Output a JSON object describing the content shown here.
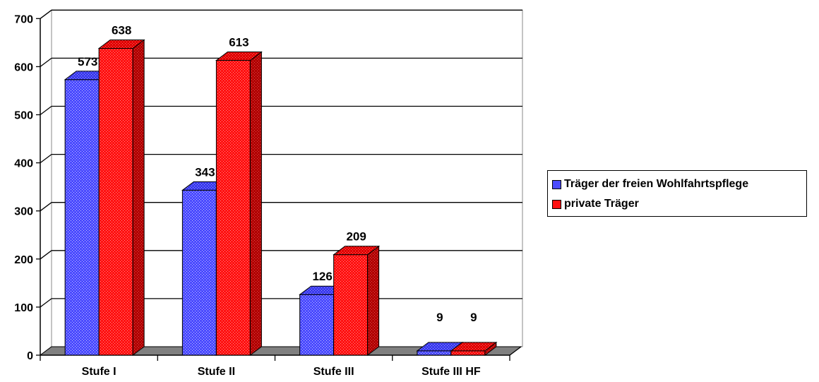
{
  "chart_data": {
    "type": "bar",
    "categories": [
      "Stufe I",
      "Stufe II",
      "Stufe III",
      "Stufe III HF"
    ],
    "series": [
      {
        "name": "Träger der freien Wohlfahrtspflege",
        "values": [
          573,
          343,
          126,
          9
        ],
        "color": "#4040ff"
      },
      {
        "name": "private Träger",
        "values": [
          638,
          613,
          209,
          9
        ],
        "color": "#ff0000"
      }
    ],
    "data_labels": [
      [
        "573",
        "343",
        "126",
        "9"
      ],
      [
        "638",
        "613",
        "209",
        "9"
      ]
    ],
    "yticks": [
      "0",
      "100",
      "200",
      "300",
      "400",
      "500",
      "600",
      "700"
    ],
    "ylim": [
      0,
      700
    ],
    "title": "",
    "xlabel": "",
    "ylabel": "",
    "grid": true,
    "three_d": true,
    "legend_position": "right"
  },
  "legend": {
    "items": [
      {
        "label": "Träger der freien Wohlfahrtspflege",
        "color": "#4040ff"
      },
      {
        "label": "private Träger",
        "color": "#ff0000"
      }
    ]
  }
}
